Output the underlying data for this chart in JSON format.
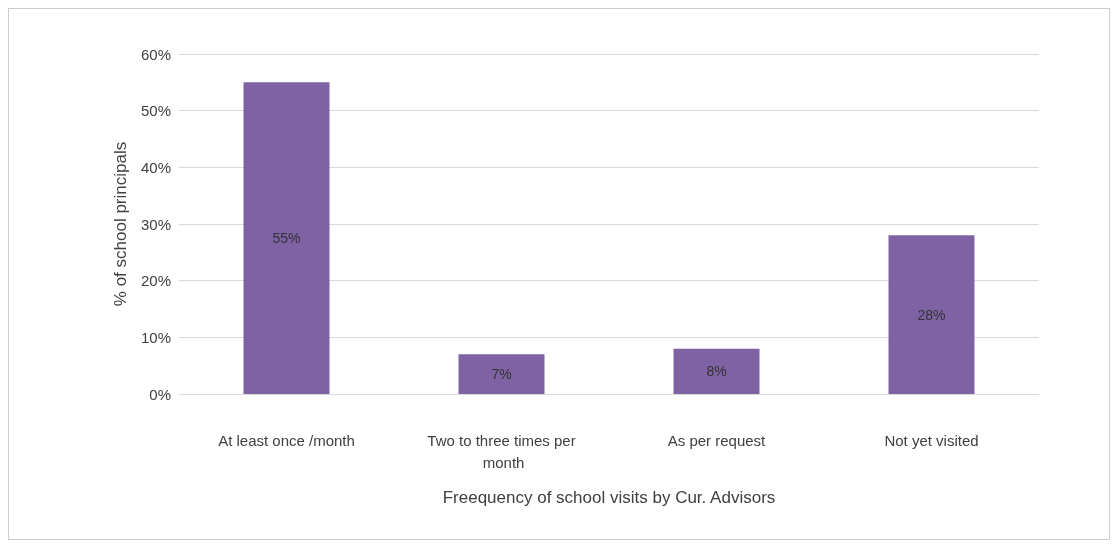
{
  "chart_data": {
    "type": "bar",
    "xlabel": "Freequency of school visits by Cur. Advisors",
    "ylabel": "% of school principals",
    "categories": [
      "At least once /month",
      "Two to three times per month",
      "As per request",
      "Not yet visited"
    ],
    "values": [
      55,
      7,
      8,
      28
    ],
    "value_labels": [
      "55%",
      "7%",
      "8%",
      "28%"
    ],
    "color": "#7e62a4",
    "ylim": [
      0,
      60
    ],
    "yticks": [
      {
        "value": 0,
        "label": "0%"
      },
      {
        "value": 10,
        "label": "10%"
      },
      {
        "value": 20,
        "label": "20%"
      },
      {
        "value": 30,
        "label": "30%"
      },
      {
        "value": 40,
        "label": "40%"
      },
      {
        "value": 50,
        "label": "50%"
      },
      {
        "value": 60,
        "label": "60%"
      }
    ],
    "grid": "y"
  }
}
